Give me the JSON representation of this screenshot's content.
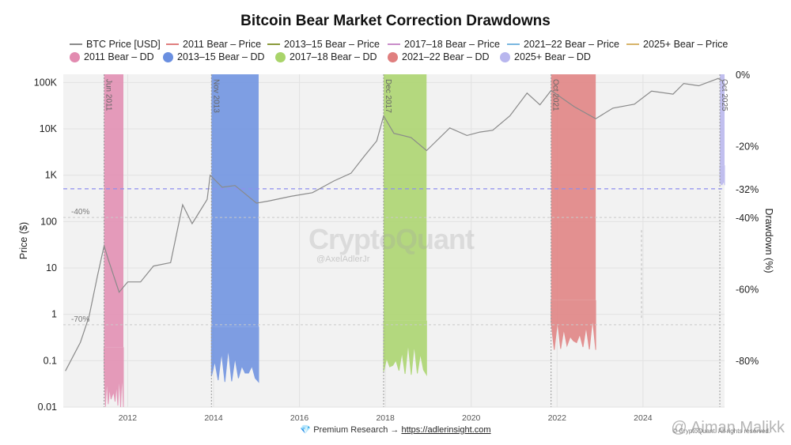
{
  "title": "Bitcoin Bear Market Correction Drawdowns",
  "legend": {
    "price": [
      {
        "label": "BTC Price [USD]",
        "color": "#8a8a8a"
      },
      {
        "label": "2011 Bear – Price",
        "color": "#e07f7f"
      },
      {
        "label": "2013–15 Bear – Price",
        "color": "#8a9a3a"
      },
      {
        "label": "2017–18 Bear – Price",
        "color": "#c98cc9"
      },
      {
        "label": "2021–22 Bear – Price",
        "color": "#7ab7e0"
      },
      {
        "label": "2025+ Bear – Price",
        "color": "#d7b46a"
      }
    ],
    "dd": [
      {
        "label": "2011 Bear – DD",
        "color": "#e28bb0"
      },
      {
        "label": "2013–15 Bear – DD",
        "color": "#6a8fe0"
      },
      {
        "label": "2017–18 Bear – DD",
        "color": "#a9d46a"
      },
      {
        "label": "2021–22 Bear – DD",
        "color": "#e07f7f"
      },
      {
        "label": "2025+ Bear – DD",
        "color": "#b8b6ee"
      }
    ]
  },
  "chart_data": {
    "type": "line",
    "x_axis": {
      "ticks": [
        "2012",
        "2014",
        "2016",
        "2018",
        "2020",
        "2022",
        "2024"
      ],
      "range": [
        2010.5,
        2025.9
      ]
    },
    "y_left": {
      "label": "Price ($)",
      "scale": "log",
      "ticks": [
        "0.01",
        "0.1",
        "1",
        "10",
        "100",
        "1K",
        "10K",
        "100K"
      ],
      "range": [
        0.01,
        150000
      ]
    },
    "y_right": {
      "label": "Drawdown (%)",
      "ticks": [
        "0%",
        "-20%",
        "-32%",
        "-40%",
        "-60%",
        "-80%"
      ],
      "range": [
        0,
        -93
      ]
    },
    "reference_lines": [
      {
        "label": "-40%",
        "dd": -40
      },
      {
        "label": "-70%",
        "dd": -70
      },
      {
        "label": "-32%",
        "dd": -32
      }
    ],
    "bear_markets": [
      {
        "label": "Jun 2011",
        "start": 2011.45,
        "end": 2011.9,
        "color": "#e28bb0",
        "min_dd": -93
      },
      {
        "label": "Nov 2013",
        "start": 2013.95,
        "end": 2015.05,
        "color": "#6a8fe0",
        "min_dd": -86
      },
      {
        "label": "Dec 2017",
        "start": 2017.96,
        "end": 2018.96,
        "color": "#a9d46a",
        "min_dd": -84
      },
      {
        "label": "Oct 2021",
        "start": 2021.86,
        "end": 2022.9,
        "color": "#e07f7f",
        "min_dd": -77
      },
      {
        "label": "Oct 2025",
        "start": 2025.79,
        "end": 2025.9,
        "color": "#b8b6ee",
        "min_dd": -31
      }
    ],
    "series": [
      {
        "name": "BTC Price [USD]",
        "x": [
          2010.55,
          2010.9,
          2011.1,
          2011.3,
          2011.45,
          2011.55,
          2011.8,
          2012.0,
          2012.3,
          2012.6,
          2013.0,
          2013.28,
          2013.5,
          2013.85,
          2013.92,
          2014.2,
          2014.5,
          2015.0,
          2015.3,
          2015.8,
          2016.3,
          2016.8,
          2017.2,
          2017.5,
          2017.8,
          2017.96,
          2018.2,
          2018.6,
          2018.96,
          2019.5,
          2019.9,
          2020.2,
          2020.5,
          2020.9,
          2021.3,
          2021.6,
          2021.86,
          2022.4,
          2022.9,
          2023.3,
          2023.8,
          2024.2,
          2024.7,
          2024.95,
          2025.3,
          2025.75,
          2025.85
        ],
        "y": [
          0.06,
          0.25,
          0.9,
          7,
          30,
          15,
          3,
          5,
          5,
          11,
          13,
          230,
          90,
          300,
          1000,
          550,
          600,
          250,
          280,
          350,
          420,
          750,
          1100,
          2500,
          5500,
          19000,
          8000,
          6500,
          3400,
          10500,
          7200,
          8500,
          9300,
          19000,
          59000,
          33000,
          67000,
          30000,
          16500,
          28000,
          34000,
          65000,
          56000,
          95000,
          85000,
          122000,
          108000
        ]
      }
    ]
  },
  "watermark": "CryptoQuant",
  "watermark_handle": "@AxelAdlerJr",
  "footer": {
    "icon": "💎",
    "text": "Premium Research →",
    "link": "https://adlerinsight.com"
  },
  "credit": "@ Aiman Malikk",
  "copyright": "© CryptoQuant. All rights reserved."
}
